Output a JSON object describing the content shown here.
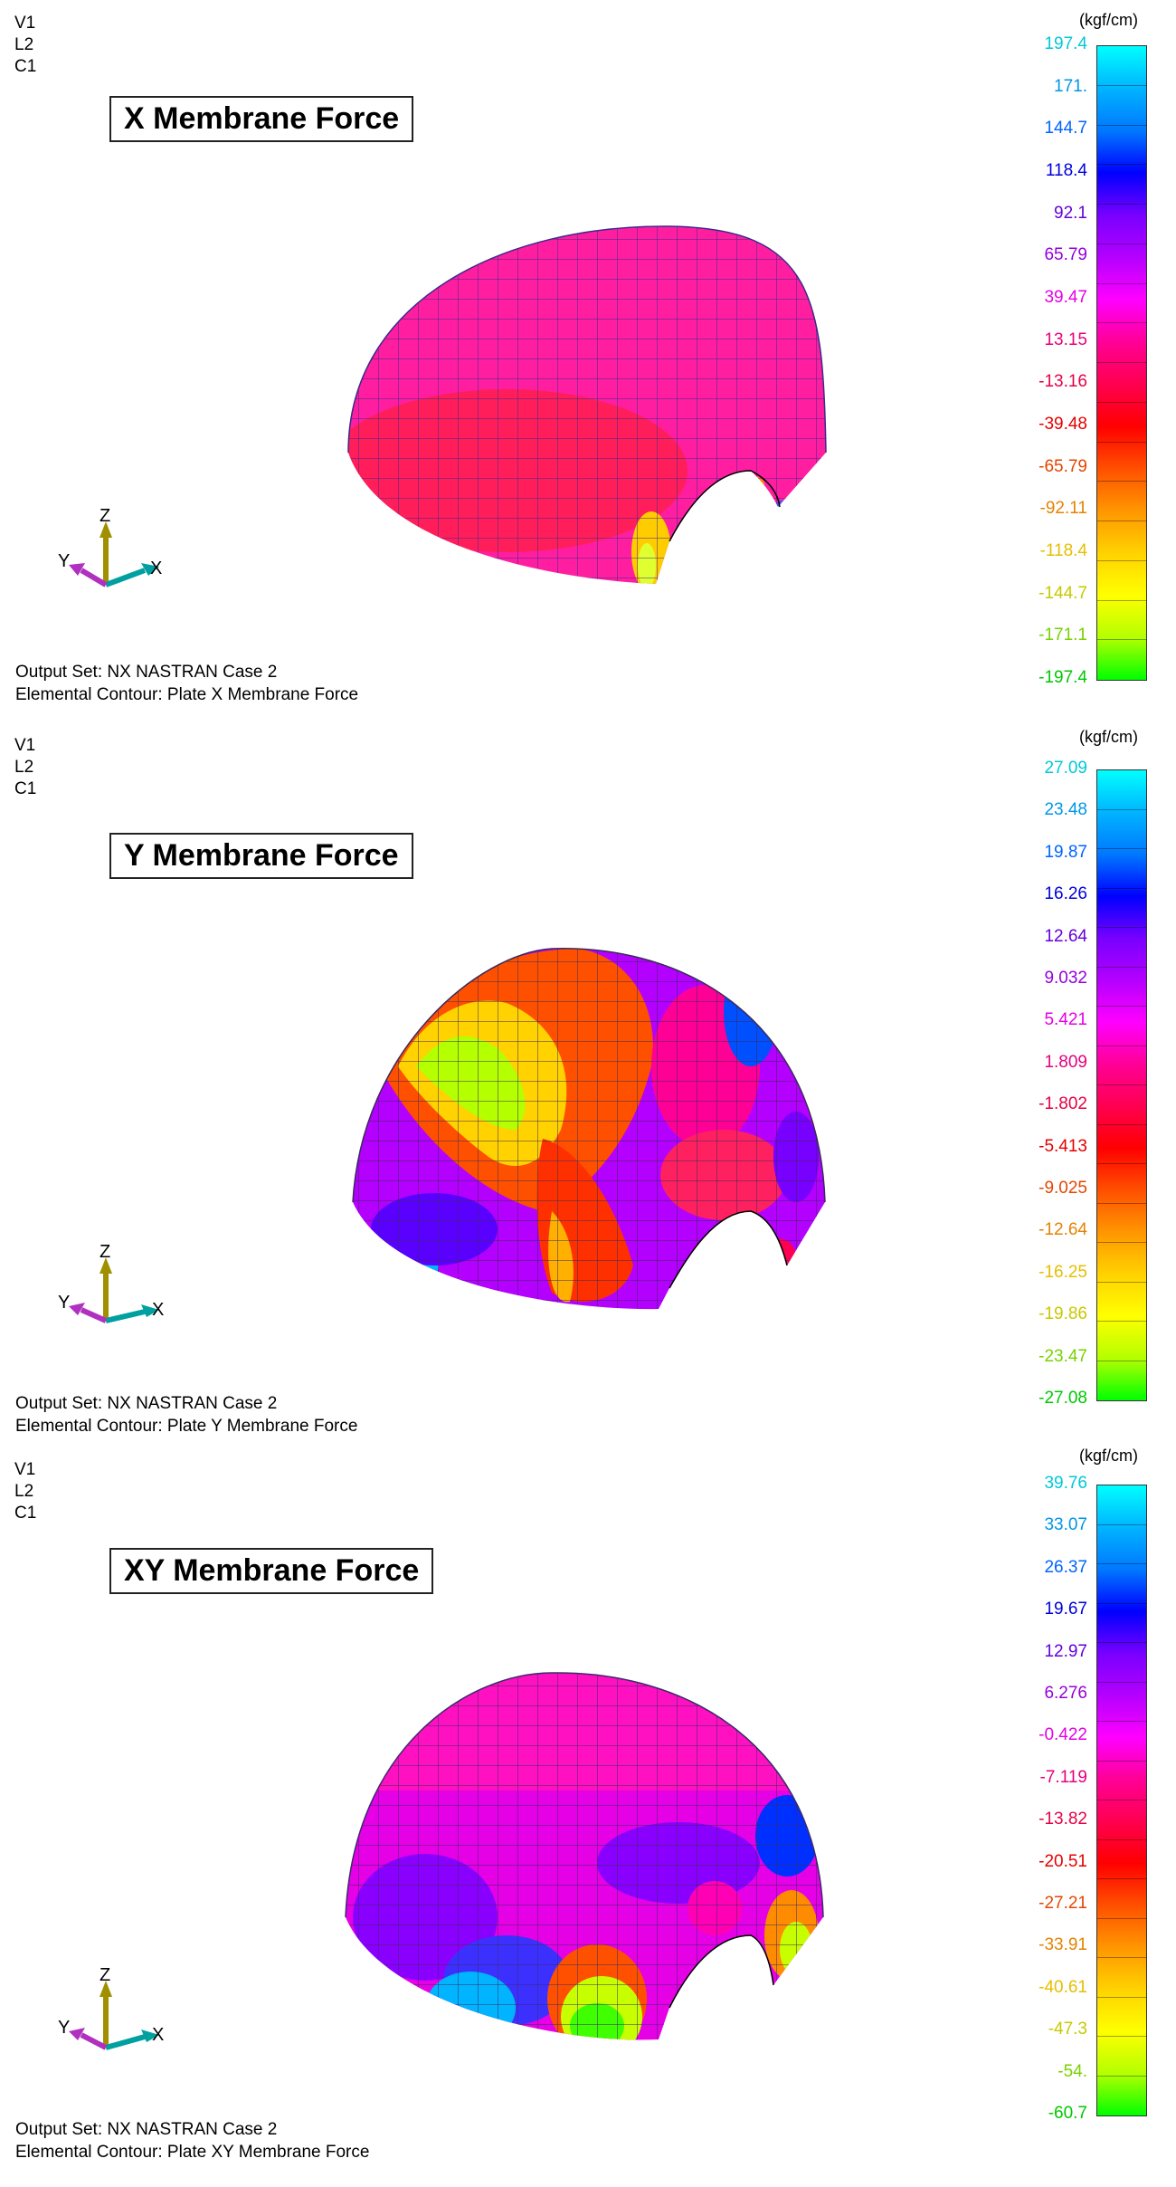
{
  "panels": [
    {
      "vlc": [
        "V1",
        "L2",
        "C1"
      ],
      "title": "X Membrane Force",
      "unit": "(kgf/cm)",
      "scale_values": [
        "197.4",
        "171.",
        "144.7",
        "118.4",
        "92.1",
        "65.79",
        "39.47",
        "13.15",
        "-13.16",
        "-39.48",
        "-65.79",
        "-92.11",
        "-118.4",
        "-144.7",
        "-171.1",
        "-197.4"
      ],
      "footer_line1": "Output Set: NX NASTRAN Case 2",
      "footer_line2": "Elemental Contour: Plate X Membrane Force",
      "axis": {
        "z": "Z",
        "y": "Y",
        "x": "X"
      }
    },
    {
      "vlc": [
        "V1",
        "L2",
        "C1"
      ],
      "title": "Y Membrane Force",
      "unit": "(kgf/cm)",
      "scale_values": [
        "27.09",
        "23.48",
        "19.87",
        "16.26",
        "12.64",
        "9.032",
        "5.421",
        "1.809",
        "-1.802",
        "-5.413",
        "-9.025",
        "-12.64",
        "-16.25",
        "-19.86",
        "-23.47",
        "-27.08"
      ],
      "footer_line1": "Output Set: NX NASTRAN Case 2",
      "footer_line2": "Elemental Contour: Plate Y Membrane Force",
      "axis": {
        "z": "Z",
        "y": "Y",
        "x": "X"
      }
    },
    {
      "vlc": [
        "V1",
        "L2",
        "C1"
      ],
      "title": "XY Membrane Force",
      "unit": "(kgf/cm)",
      "scale_values": [
        "39.76",
        "33.07",
        "26.37",
        "19.67",
        "12.97",
        "6.276",
        "-0.422",
        "-7.119",
        "-13.82",
        "-20.51",
        "-27.21",
        "-33.91",
        "-40.61",
        "-47.3",
        "-54.",
        "-60.7"
      ],
      "footer_line1": "Output Set: NX NASTRAN Case 2",
      "footer_line2": "Elemental Contour: Plate XY Membrane Force",
      "axis": {
        "z": "Z",
        "y": "Y",
        "x": "X"
      }
    }
  ],
  "scale_colors": [
    "#00ffff",
    "#00b4ff",
    "#0078ff",
    "#0000ff",
    "#7800ff",
    "#b400ff",
    "#ff00ff",
    "#ff0096",
    "#ff0050",
    "#ff0000",
    "#ff5000",
    "#ff9600",
    "#ffd200",
    "#ffff00",
    "#b4ff00",
    "#00ff00"
  ],
  "label_colors": [
    "#00c8d8",
    "#0096e6",
    "#0064ff",
    "#0000dc",
    "#6400dc",
    "#9600dc",
    "#e600e6",
    "#e6007d",
    "#e60046",
    "#e60000",
    "#e64600",
    "#e68200",
    "#e6be00",
    "#c8c800",
    "#78d200",
    "#00c800"
  ]
}
